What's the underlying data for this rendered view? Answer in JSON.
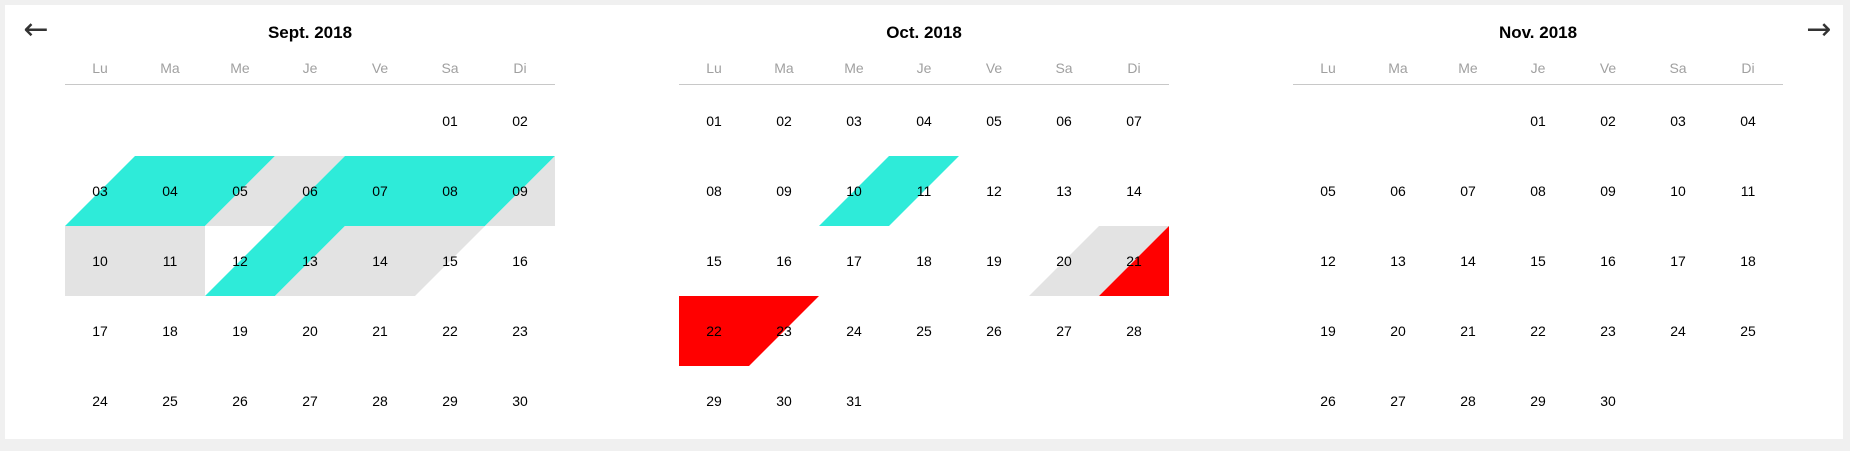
{
  "nav": {
    "prev_label": "←",
    "next_label": "→"
  },
  "colors": {
    "available": "#2eebd9",
    "pending": "#e3e3e3",
    "blocked": "#ff0000"
  },
  "months": [
    {
      "title": "Sept. 2018",
      "weekdays": [
        "Lu",
        "Ma",
        "Me",
        "Je",
        "Ve",
        "Sa",
        "Di"
      ],
      "start_offset": 5,
      "days": [
        "01",
        "02",
        "03",
        "04",
        "05",
        "06",
        "07",
        "08",
        "09",
        "10",
        "11",
        "12",
        "13",
        "14",
        "15",
        "16",
        "17",
        "18",
        "19",
        "20",
        "21",
        "22",
        "23",
        "24",
        "25",
        "26",
        "27",
        "28",
        "29",
        "30"
      ],
      "highlights": [
        {
          "status": "available",
          "days": [
            "03",
            "04",
            "07",
            "08",
            "09",
            "12",
            "13"
          ]
        },
        {
          "status": "pending",
          "days": [
            "05",
            "06",
            "09",
            "10",
            "11",
            "13",
            "14",
            "15"
          ]
        }
      ]
    },
    {
      "title": "Oct. 2018",
      "weekdays": [
        "Lu",
        "Ma",
        "Me",
        "Je",
        "Ve",
        "Sa",
        "Di"
      ],
      "start_offset": 0,
      "days": [
        "01",
        "02",
        "03",
        "04",
        "05",
        "06",
        "07",
        "08",
        "09",
        "10",
        "11",
        "12",
        "13",
        "14",
        "15",
        "16",
        "17",
        "18",
        "19",
        "20",
        "21",
        "22",
        "23",
        "24",
        "25",
        "26",
        "27",
        "28",
        "29",
        "30",
        "31"
      ],
      "highlights": [
        {
          "status": "available",
          "days": [
            "10",
            "11"
          ]
        },
        {
          "status": "pending",
          "days": [
            "20",
            "21"
          ]
        },
        {
          "status": "blocked",
          "days": [
            "21",
            "22",
            "23"
          ]
        }
      ]
    },
    {
      "title": "Nov. 2018",
      "weekdays": [
        "Lu",
        "Ma",
        "Me",
        "Je",
        "Ve",
        "Sa",
        "Di"
      ],
      "start_offset": 3,
      "days": [
        "01",
        "02",
        "03",
        "04",
        "05",
        "06",
        "07",
        "08",
        "09",
        "10",
        "11",
        "12",
        "13",
        "14",
        "15",
        "16",
        "17",
        "18",
        "19",
        "20",
        "21",
        "22",
        "23",
        "24",
        "25",
        "26",
        "27",
        "28",
        "29",
        "30"
      ],
      "highlights": []
    }
  ]
}
